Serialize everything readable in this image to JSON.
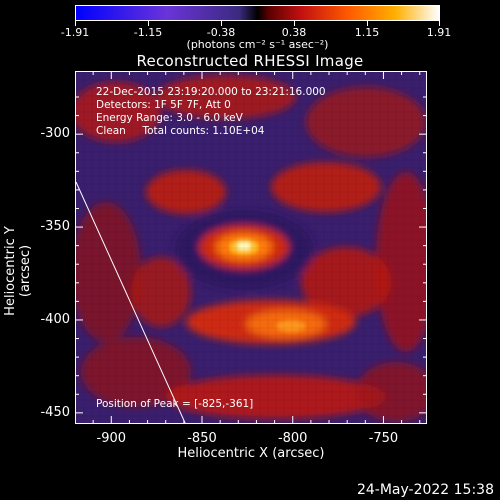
{
  "colorbar": {
    "tick_labels": [
      "-1.91",
      "-1.15",
      "-0.38",
      "0.38",
      "1.15",
      "1.91"
    ],
    "units_label": "(photons cm⁻² s⁻¹ asec⁻²)",
    "colors": [
      "#0000ff",
      "#3b2a80",
      "#000000",
      "#c21010",
      "#ff5a00",
      "#ffb000",
      "#ffffff"
    ]
  },
  "title": "Reconstructed RHESSI Image",
  "annotations": {
    "time_range": "22-Dec-2015 23:19:20.000 to 23:21:16.000",
    "detectors": "Detectors: 1F 5F 7F, Att 0",
    "energy_range": "Energy Range: 3.0 - 6.0 keV",
    "method_counts": "Clean     Total counts: 1.10E+04",
    "peak_position": "Position of Peak = [-825,-361]"
  },
  "axes": {
    "x_title": "Heliocentric X (arcsec)",
    "y_title": "Heliocentric Y (arcsec)",
    "x_tick_labels": [
      "-900",
      "-850",
      "-800",
      "-750"
    ],
    "y_tick_labels": [
      "-300",
      "-350",
      "-400",
      "-450"
    ],
    "x_ticks": [
      -900,
      -850,
      -800,
      -750
    ],
    "y_ticks": [
      -300,
      -350,
      -400,
      -450
    ],
    "x_range": [
      -920,
      -726
    ],
    "y_range": [
      -456,
      -266
    ]
  },
  "peak": {
    "x": -825,
    "y": -361
  },
  "timestamp": "24-May-2022 15:38"
}
